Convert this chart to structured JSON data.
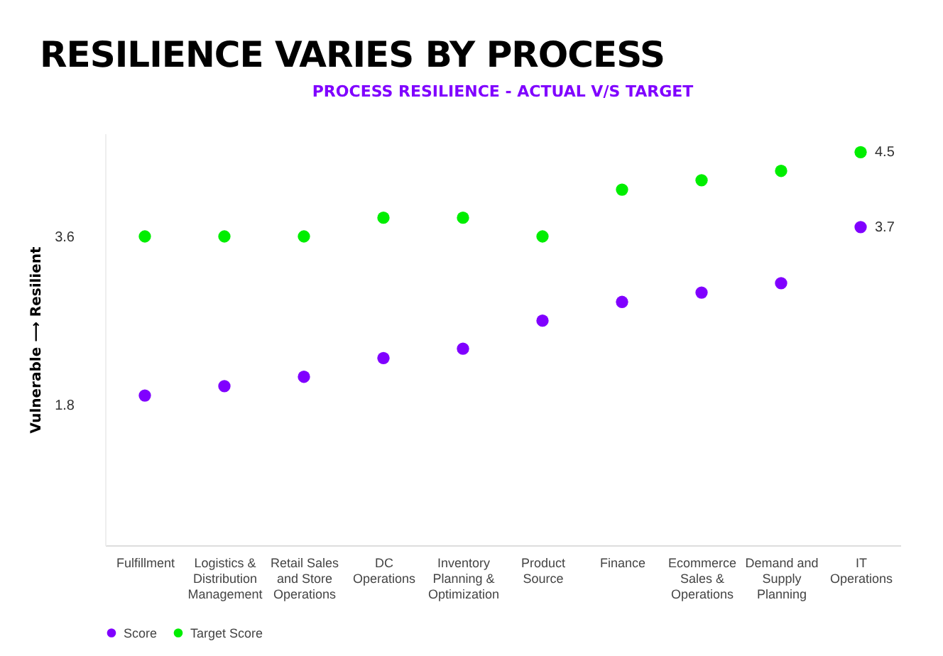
{
  "chart_data": {
    "type": "scatter",
    "title": "RESILIENCE VARIES BY PROCESS",
    "subtitle": "PROCESS RESILIENCE - ACTUAL V/S TARGET",
    "ylabel": "Vulnerable ⟶ Resilient",
    "categories": [
      "Fulfillment",
      "Logistics & Distribution Management",
      "Retail Sales and Store Operations",
      "DC Operations",
      "Inventory Planning & Optimization",
      "Product Source",
      "Finance",
      "Ecommerce Sales & Operations",
      "Demand and Supply Planning",
      "IT Operations"
    ],
    "series": [
      {
        "name": "Score",
        "color": "#8000ff",
        "values": [
          1.9,
          2.0,
          2.1,
          2.3,
          2.4,
          2.7,
          2.9,
          3.0,
          3.1,
          3.7
        ],
        "value_labels": [
          null,
          null,
          null,
          null,
          null,
          null,
          null,
          null,
          null,
          "3.7"
        ]
      },
      {
        "name": "Target Score",
        "color": "#00ee00",
        "values": [
          3.6,
          3.6,
          3.6,
          3.8,
          3.8,
          3.6,
          4.1,
          4.2,
          4.3,
          4.5
        ],
        "value_labels": [
          null,
          null,
          null,
          null,
          null,
          null,
          null,
          null,
          null,
          "4.5"
        ]
      }
    ],
    "ylim": [
      0.3,
      4.7
    ],
    "yticks": [
      1.8,
      3.6
    ],
    "grid": false,
    "legend": "bottom",
    "marker": "circle"
  }
}
